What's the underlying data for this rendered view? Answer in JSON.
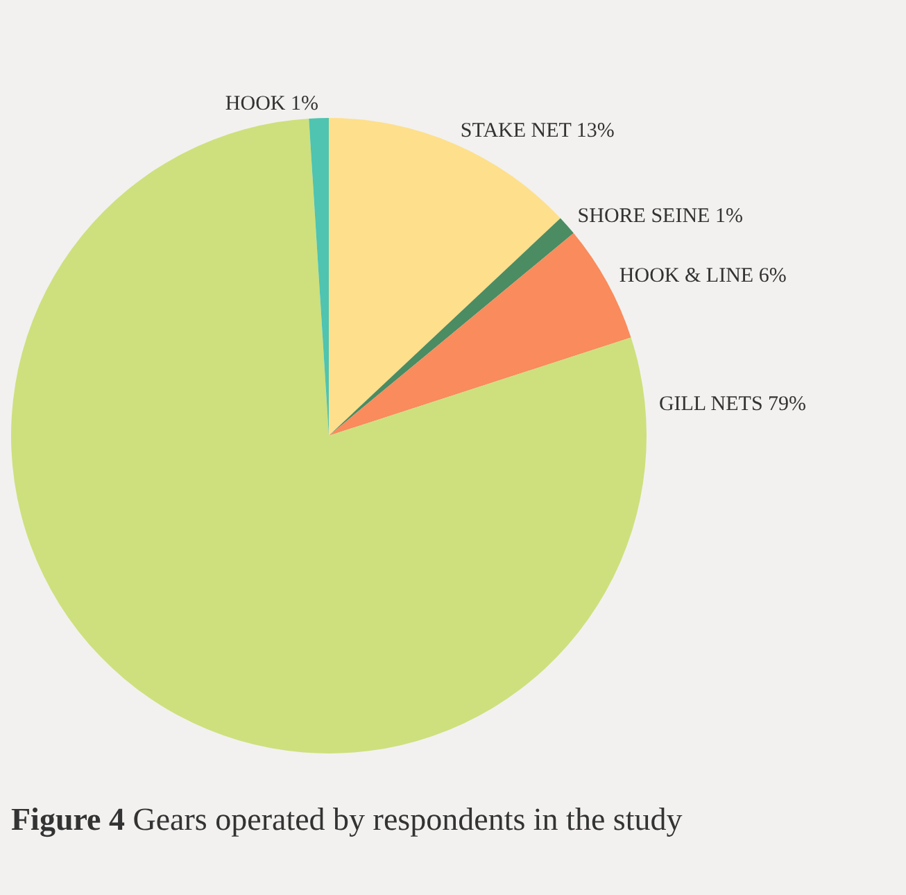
{
  "chart_data": {
    "type": "pie",
    "categories": [
      "STAKE NET",
      "SHORE SEINE",
      "HOOK & LINE",
      "GILL NETS",
      "HOOK"
    ],
    "values": [
      13,
      1,
      6,
      79,
      1
    ],
    "value_labels": [
      "13%",
      "1%",
      "6%",
      "79%",
      "1%"
    ],
    "colors": [
      "#fedf8b",
      "#4b8c62",
      "#f98b5c",
      "#cde07d",
      "#4fc4b0"
    ],
    "annotations": [
      "Figure 4",
      "Gears operated by respondents in the study"
    ],
    "legend": false
  }
}
